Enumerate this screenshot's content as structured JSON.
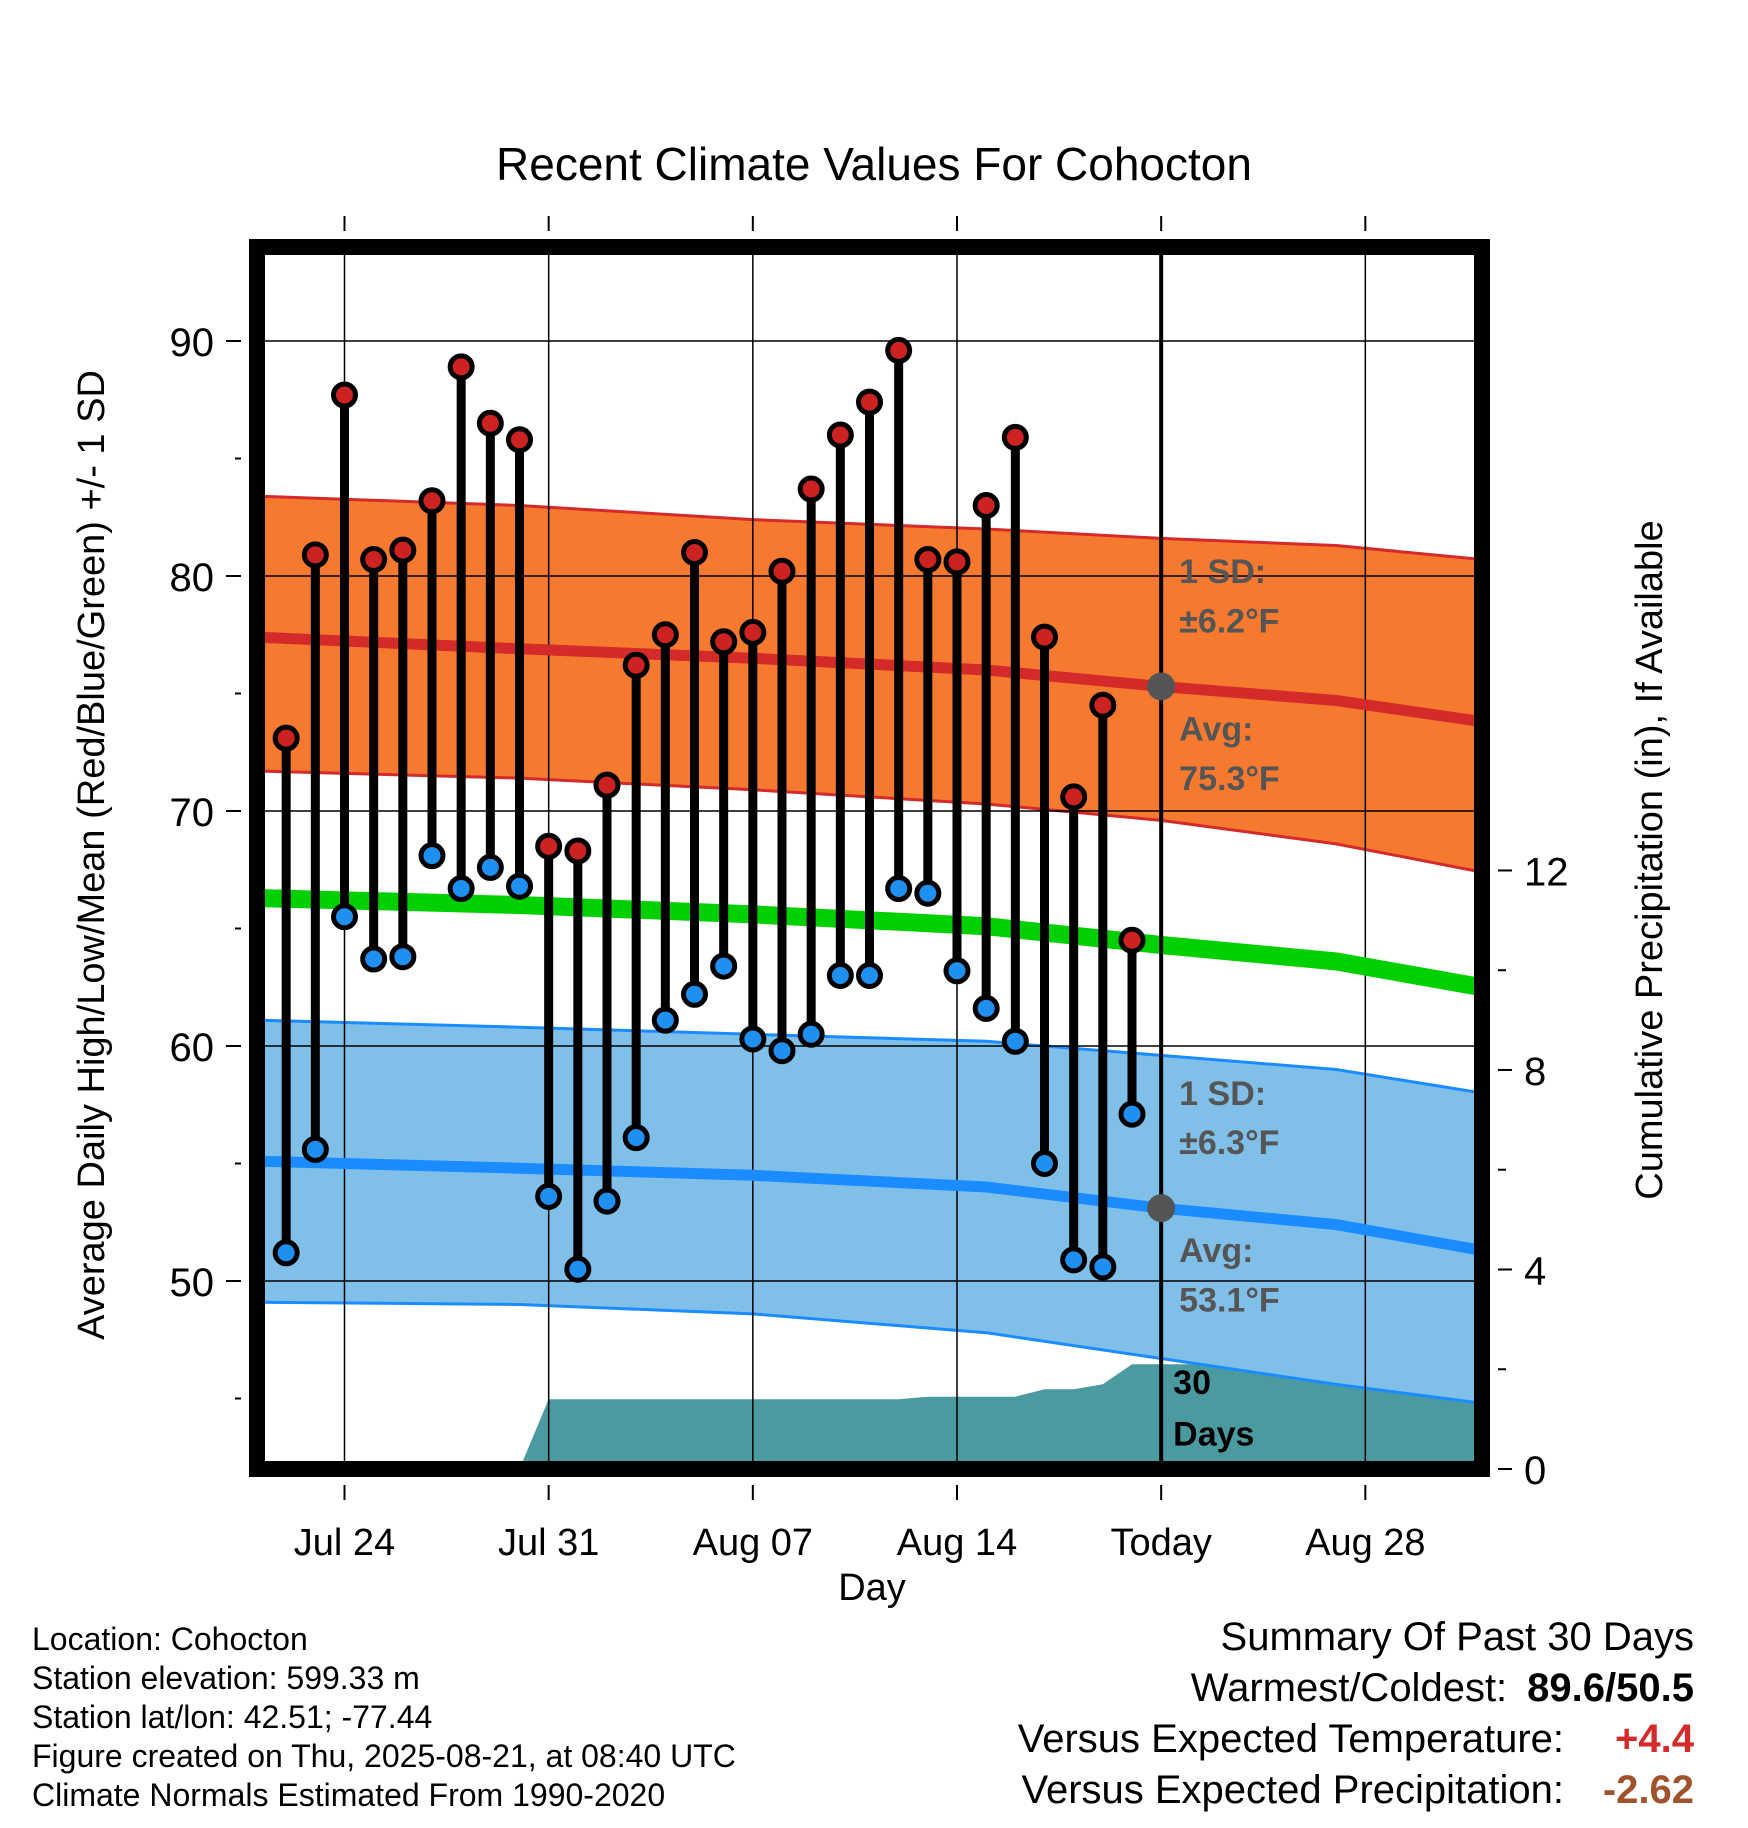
{
  "chart_data": {
    "type": "line",
    "title": "Recent Climate Values For Cohocton",
    "xlabel": "Day",
    "ylabel_left": "Average Daily High/Low/Mean (Red/Blue/Green) +/- 1 SD",
    "ylabel_right": "Cumulative Precipitation (in), If Available",
    "ylim_left": [
      42,
      94
    ],
    "ylim_right": [
      0,
      24.5
    ],
    "left_ticks": [
      50,
      60,
      70,
      80,
      90
    ],
    "left_tick_labels": [
      "50",
      "60",
      "70",
      "80",
      "90"
    ],
    "right_ticks": [
      0,
      4,
      8,
      12
    ],
    "right_tick_labels": [
      "0",
      "4",
      "8",
      "12"
    ],
    "x_range": [
      -1,
      41
    ],
    "x_ticks": [
      2,
      9,
      16,
      23,
      30,
      37
    ],
    "x_tick_labels": [
      "Jul 24",
      "Jul 31",
      "Aug 07",
      "Aug 14",
      "Today",
      "Aug 28"
    ],
    "today_index": 30,
    "grid": true,
    "daily_highs": [
      73.1,
      80.9,
      87.7,
      80.7,
      81.1,
      83.2,
      88.9,
      86.5,
      85.8,
      68.5,
      68.3,
      71.1,
      76.2,
      77.5,
      81.0,
      77.2,
      77.6,
      80.2,
      83.7,
      86.0,
      87.4,
      89.6,
      80.7,
      80.6,
      83.0,
      85.9,
      77.4,
      70.6,
      74.5,
      64.5
    ],
    "daily_lows": [
      51.2,
      55.6,
      65.5,
      63.7,
      63.8,
      68.1,
      66.7,
      67.6,
      66.8,
      53.6,
      50.5,
      53.4,
      56.1,
      61.1,
      62.2,
      63.4,
      60.3,
      59.8,
      60.5,
      63.0,
      63.0,
      66.7,
      66.5,
      63.2,
      61.6,
      60.2,
      55.0,
      50.9,
      50.6,
      57.1
    ],
    "normal_x": [
      -1,
      8,
      16,
      24,
      30,
      36,
      41
    ],
    "normal_high": [
      77.4,
      76.9,
      76.5,
      76.0,
      75.3,
      74.7,
      73.8
    ],
    "normal_high_upper": [
      83.4,
      83.0,
      82.4,
      82.0,
      81.6,
      81.3,
      80.7
    ],
    "normal_high_lower": [
      71.7,
      71.4,
      70.9,
      70.3,
      69.6,
      68.6,
      67.4
    ],
    "normal_mean": [
      66.3,
      66.0,
      65.6,
      65.1,
      64.3,
      63.6,
      62.5
    ],
    "normal_low": [
      55.1,
      54.8,
      54.5,
      54.0,
      53.1,
      52.4,
      51.3
    ],
    "normal_low_upper": [
      61.1,
      60.8,
      60.5,
      60.2,
      59.6,
      59.0,
      58.0
    ],
    "normal_low_lower": [
      49.1,
      49.0,
      48.6,
      47.8,
      46.7,
      45.6,
      44.8
    ],
    "precip_x": [
      -1,
      6,
      7,
      8,
      9,
      10,
      16,
      21,
      22,
      25,
      26,
      27,
      28,
      29,
      41
    ],
    "precip_y": [
      0,
      0,
      0,
      0,
      1.4,
      1.4,
      1.4,
      1.4,
      1.45,
      1.45,
      1.6,
      1.6,
      1.7,
      2.1,
      2.1
    ],
    "annotations": {
      "high_sd": [
        "1 SD:",
        "±6.2°F"
      ],
      "high_avg": [
        "Avg:",
        "75.3°F"
      ],
      "low_sd": [
        "1 SD:",
        "±6.3°F"
      ],
      "low_avg": [
        "Avg:",
        "53.1°F"
      ],
      "period": [
        "30",
        "Days"
      ]
    },
    "today_high_avg": 75.3,
    "today_low_avg": 53.1
  },
  "footer": {
    "location": "Location: Cohocton",
    "elevation": "Station elevation: 599.33 m",
    "latlon": "Station lat/lon: 42.51; -77.44",
    "created": "Figure created on Thu, 2025-08-21, at 08:40 UTC",
    "normals": "Climate Normals Estimated From 1990-2020"
  },
  "summary": {
    "heading": "Summary Of Past 30 Days",
    "warm_cold_label": "Warmest/Coldest:",
    "warm_cold_value": "89.6/50.5",
    "temp_label": "Versus Expected Temperature:",
    "temp_value": "+4.4",
    "precip_label": "Versus Expected Precipitation:",
    "precip_value": "-2.62"
  },
  "colors": {
    "high_band": "#f57a30",
    "high_line": "#d42a2a",
    "low_band": "#80c0e8",
    "low_line": "#1a8cff",
    "mean_line": "#00d000",
    "precip_fill": "#4a9aa0",
    "high_dot": "#cc2222",
    "low_dot": "#2090f0",
    "annotation": "#555555"
  }
}
